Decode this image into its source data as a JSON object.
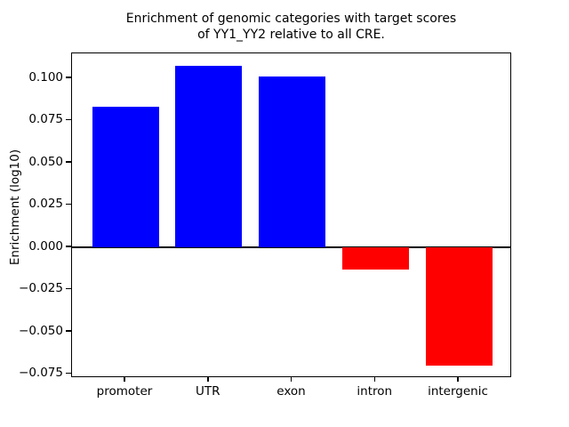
{
  "chart_data": {
    "type": "bar",
    "title": "Enrichment of genomic categories with target scores\nof YY1_YY2 relative to all CRE.",
    "xlabel": "",
    "ylabel": "Enrichment (log10)",
    "categories": [
      "promoter",
      "UTR",
      "exon",
      "intron",
      "intergenic"
    ],
    "values": [
      0.083,
      0.107,
      0.101,
      -0.013,
      -0.07
    ],
    "bar_colors": [
      "#0000ff",
      "#0000ff",
      "#0000ff",
      "#ff0000",
      "#ff0000"
    ],
    "positive_color": "#0000ff",
    "negative_color": "#ff0000",
    "bar_width_fraction": 0.8,
    "ylim": [
      -0.0774,
      0.1146
    ],
    "yticks": [
      0.1,
      0.075,
      0.05,
      0.025,
      0.0,
      -0.025,
      -0.05,
      -0.075
    ],
    "ytick_labels": [
      "0.100",
      "0.075",
      "0.050",
      "0.025",
      "0.000",
      "−0.025",
      "−0.050",
      "−0.075"
    ],
    "zero_line": true,
    "zero_line_color": "#000000",
    "grid": false,
    "legend": "none"
  }
}
